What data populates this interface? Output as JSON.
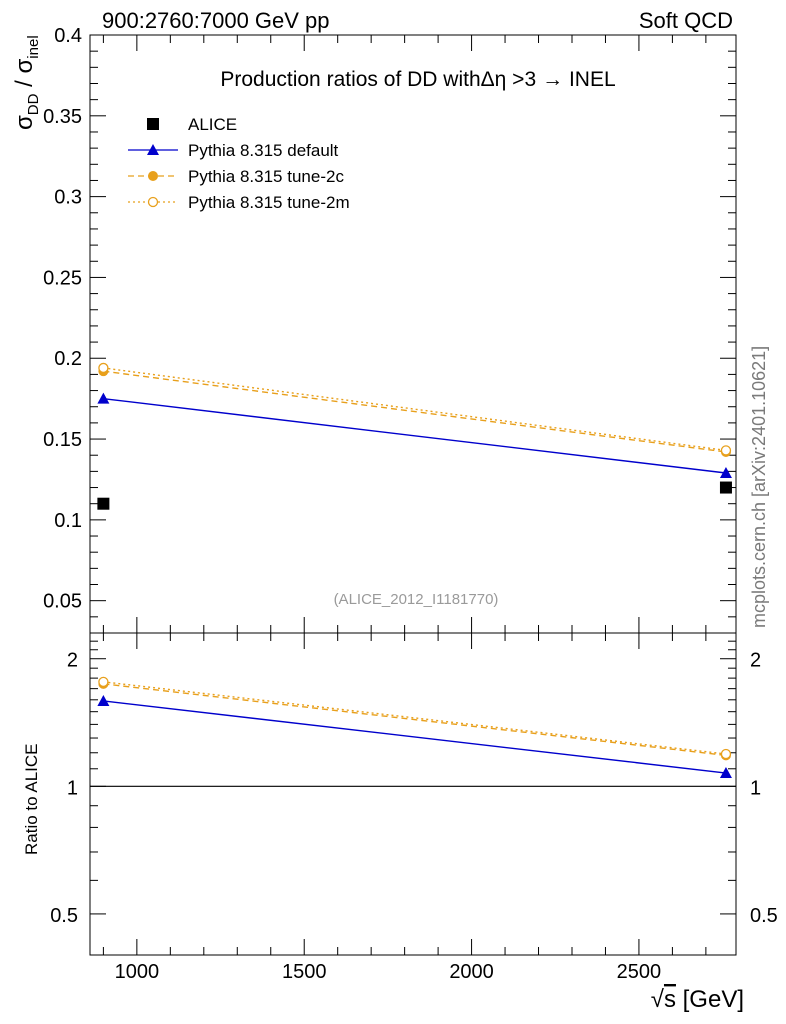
{
  "header": {
    "left": "900:2760:7000 GeV pp",
    "right": "Soft QCD"
  },
  "side_label": "mcplots.cern.ch [arXiv:2401.10621]",
  "watermark": "(ALICE_2012_I1181770)",
  "chart_data": [
    {
      "panel": "main",
      "type": "line",
      "title_parts": {
        "prefix": "Production ratios of DD with",
        "delta_eta": "Δη",
        "suffix": " >3",
        "arrow": "→",
        "end": " INEL"
      },
      "ylabel_parts": {
        "sigma1": "σ",
        "sub1": "DD",
        "slash": " / ",
        "sigma2": "σ",
        "sub2": "inel"
      },
      "xlabel": "",
      "xlim": [
        860,
        2790
      ],
      "ylim": [
        0.03,
        0.4
      ],
      "x_ticks": [
        1000,
        1500,
        2000,
        2500
      ],
      "y_ticks": [
        {
          "value": 0.05,
          "label": "0.05"
        },
        {
          "value": 0.1,
          "label": "0.1"
        },
        {
          "value": 0.15,
          "label": "0.15"
        },
        {
          "value": 0.2,
          "label": "0.2"
        },
        {
          "value": 0.25,
          "label": "0.25"
        },
        {
          "value": 0.3,
          "label": "0.3"
        },
        {
          "value": 0.35,
          "label": "0.35"
        },
        {
          "value": 0.4,
          "label": "0.4"
        }
      ],
      "legend_position": "top-left",
      "series": [
        {
          "name": "ALICE",
          "style": "data",
          "color": "#000000",
          "marker": "square",
          "x": [
            900,
            2760
          ],
          "y": [
            0.11,
            0.12
          ]
        },
        {
          "name": "Pythia 8.315 default",
          "style": "solid",
          "color": "#0000cc",
          "marker": "triangle",
          "x": [
            900,
            2760
          ],
          "y": [
            0.175,
            0.129
          ]
        },
        {
          "name": "Pythia 8.315 tune-2c",
          "style": "dashed",
          "color": "#e8a01c",
          "marker": "circle-filled",
          "x": [
            900,
            2760
          ],
          "y": [
            0.192,
            0.142
          ]
        },
        {
          "name": "Pythia 8.315 tune-2m",
          "style": "dotted",
          "color": "#e8a01c",
          "marker": "circle-open",
          "x": [
            900,
            2760
          ],
          "y": [
            0.194,
            0.143
          ]
        }
      ]
    },
    {
      "panel": "ratio",
      "type": "line",
      "ylabel": "Ratio to ALICE",
      "xlabel_parts": {
        "root": "√",
        "s": "s",
        "unit": " [GeV]"
      },
      "xlim": [
        860,
        2790
      ],
      "ylim": [
        0.4,
        2.3
      ],
      "scale": "log",
      "x_ticks": [
        {
          "value": 1000,
          "label": "1000"
        },
        {
          "value": 1500,
          "label": "1500"
        },
        {
          "value": 2000,
          "label": "2000"
        },
        {
          "value": 2500,
          "label": "2500"
        }
      ],
      "y_ticks": [
        {
          "value": 0.5,
          "label": "0.5"
        },
        {
          "value": 1,
          "label": "1"
        },
        {
          "value": 2,
          "label": "2"
        }
      ],
      "reference_line": 1,
      "series": [
        {
          "name": "Pythia 8.315 default",
          "style": "solid",
          "color": "#0000cc",
          "marker": "triangle",
          "x": [
            900,
            2760
          ],
          "y": [
            1.59,
            1.075
          ]
        },
        {
          "name": "Pythia 8.315 tune-2c",
          "style": "dashed",
          "color": "#e8a01c",
          "marker": "circle-filled",
          "x": [
            900,
            2760
          ],
          "y": [
            1.745,
            1.183
          ]
        },
        {
          "name": "Pythia 8.315 tune-2m",
          "style": "dotted",
          "color": "#e8a01c",
          "marker": "circle-open",
          "x": [
            900,
            2760
          ],
          "y": [
            1.764,
            1.192
          ]
        }
      ]
    }
  ]
}
